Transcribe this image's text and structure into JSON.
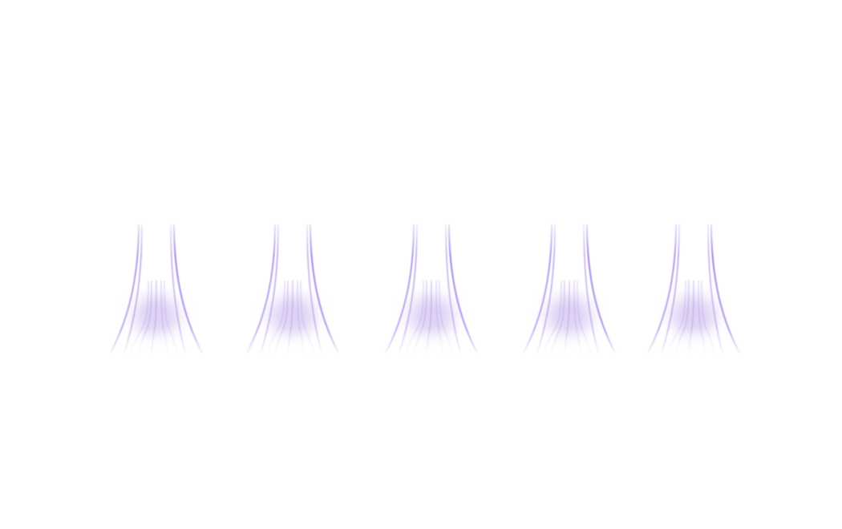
{
  "graphic": {
    "shape": "light-beam",
    "count": 5,
    "colors": {
      "stroke": "#7b52d9",
      "glow": "#c7b3ec",
      "background": "#ffffff"
    }
  }
}
